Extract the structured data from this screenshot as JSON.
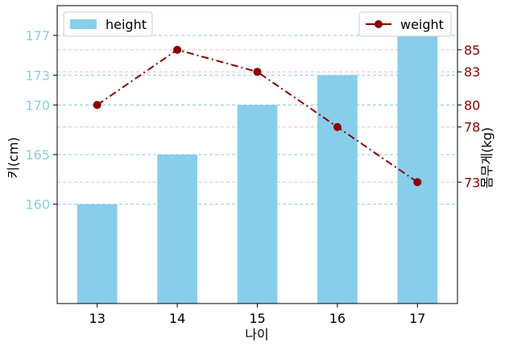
{
  "chart_data": {
    "type": "bar+line",
    "categories": [
      "13",
      "14",
      "15",
      "16",
      "17"
    ],
    "xlabel": "나이",
    "title": "",
    "left_axis": {
      "label": "키(cm)",
      "ylim": [
        150,
        180
      ],
      "ticks": [
        160,
        165,
        170,
        173,
        177
      ],
      "color": "#87ceeb",
      "grid": "dashed"
    },
    "right_axis": {
      "label": "몸무게(kg)",
      "ylim": [
        62,
        89
      ],
      "ticks": [
        73,
        78,
        80,
        83,
        85
      ],
      "color": "#8b0000",
      "grid": "dashed",
      "grid_color": "#ffb6c1"
    },
    "series": [
      {
        "name": "height",
        "kind": "bar",
        "axis": "left",
        "values": [
          160,
          165,
          170,
          173,
          177
        ],
        "color": "#87ceeb"
      },
      {
        "name": "weight",
        "kind": "line",
        "axis": "right",
        "values": [
          80,
          85,
          83,
          78,
          73
        ],
        "color": "#8b0000",
        "linestyle": "dash-dot",
        "marker": "circle"
      }
    ],
    "legends": [
      {
        "series": "height",
        "position": "top-left"
      },
      {
        "series": "weight",
        "position": "top-right"
      }
    ]
  }
}
